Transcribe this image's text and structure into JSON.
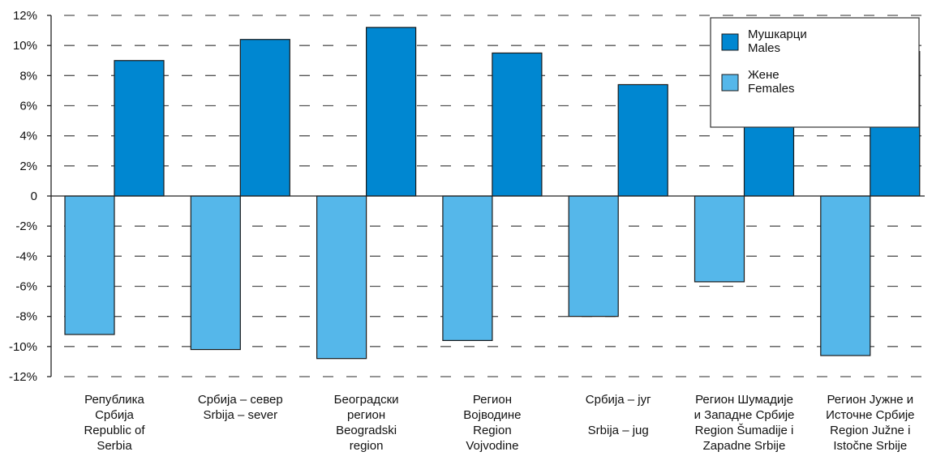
{
  "chart_data": {
    "type": "bar",
    "title": "",
    "xlabel": "",
    "ylabel": "",
    "ylim": [
      -12,
      12
    ],
    "y_ticks": [
      12,
      10,
      8,
      6,
      4,
      2,
      0,
      -2,
      -4,
      -6,
      -8,
      -10,
      -12
    ],
    "y_tick_labels": [
      "12%",
      "10%",
      "8%",
      "6%",
      "4%",
      "2%",
      "0",
      "-2%",
      "-4%",
      "-6%",
      "-8%",
      "-10%",
      "-12%"
    ],
    "grid": "horizontal dashed",
    "legend_position": "top-right",
    "categories": [
      [
        "Република",
        "Србија",
        "Republic of",
        "Serbia"
      ],
      [
        "Србија – север",
        "Srbija – sever"
      ],
      [
        "Београдски",
        "регион",
        "Beogradski",
        "region"
      ],
      [
        "Регион",
        "Војводине",
        "Region",
        "Vojvodine"
      ],
      [
        "Србија – југ",
        "",
        "Srbija – jug"
      ],
      [
        "Регион Шумадије",
        "и Западне Србије",
        "Region Šumadije i",
        "Zapadne Srbije"
      ],
      [
        "Регион Јужне и",
        "Источне Србије",
        "Region Južne i",
        "Istočne Srbije"
      ]
    ],
    "series": [
      {
        "name": [
          "Жене",
          "Females"
        ],
        "color": "#55b7ea",
        "values": [
          -9.2,
          -10.2,
          -10.8,
          -9.6,
          -8.0,
          -5.7,
          -10.6
        ]
      },
      {
        "name": [
          "Мушкарци",
          "Males"
        ],
        "color": "#0087d1",
        "values": [
          9.0,
          10.4,
          11.2,
          9.5,
          7.4,
          5.4,
          9.6
        ]
      }
    ],
    "legend_order": [
      1,
      0
    ]
  }
}
